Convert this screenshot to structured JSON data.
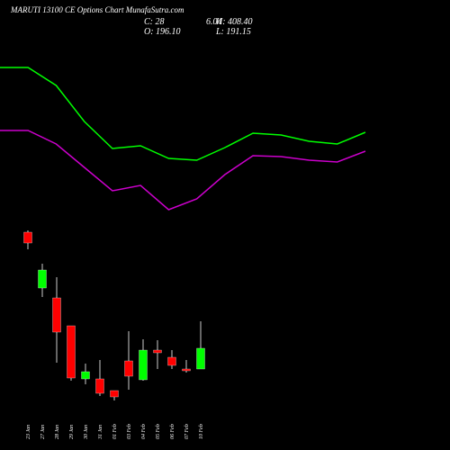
{
  "chart_data": [
    {
      "type": "candlestick",
      "title": "MARUTI 13100 CE Options Chart MunafaSutra.com",
      "annotations": [
        "C: 28",
        "6.04",
        "H: 408.40",
        "O: 196.10",
        "L: 191.15"
      ],
      "categories": [
        "23 Jan",
        "27 Jan",
        "28 Jan",
        "29 Jan",
        "30 Jan",
        "31 Jan",
        "01 Feb",
        "03 Feb",
        "04 Feb",
        "05 Feb",
        "06 Feb",
        "07 Feb",
        "10 Feb"
      ],
      "open": [
        404,
        280,
        258,
        196,
        78,
        78,
        52,
        118,
        76,
        142,
        126,
        100,
        100
      ],
      "high": [
        408,
        334,
        304,
        196,
        112,
        120,
        52,
        184,
        166,
        164,
        142,
        120,
        206
      ],
      "low": [
        366,
        260,
        114,
        74,
        66,
        40,
        30,
        54,
        74,
        100,
        100,
        92,
        100
      ],
      "close": [
        380,
        320,
        182,
        80,
        94,
        46,
        38,
        84,
        142,
        136,
        108,
        96,
        146
      ],
      "up_color": "#00ff00",
      "down_color": "#ff0000",
      "ylim": [
        0,
        920
      ]
    },
    {
      "type": "line",
      "x": [
        0,
        1,
        2,
        3,
        4,
        5,
        6,
        7,
        8,
        9,
        10,
        11,
        12,
        13
      ],
      "xlim": [
        0,
        13
      ],
      "ylim": [
        0,
        920
      ],
      "series": [
        {
          "color": "#00ff00",
          "values": [
            770,
            770,
            730,
            650,
            590,
            596,
            568,
            564,
            592,
            624,
            620,
            606,
            600,
            626
          ]
        },
        {
          "color": "#cc00cc",
          "values": [
            630,
            630,
            600,
            548,
            496,
            508,
            454,
            478,
            532,
            574,
            572,
            564,
            560,
            584
          ]
        }
      ]
    }
  ]
}
